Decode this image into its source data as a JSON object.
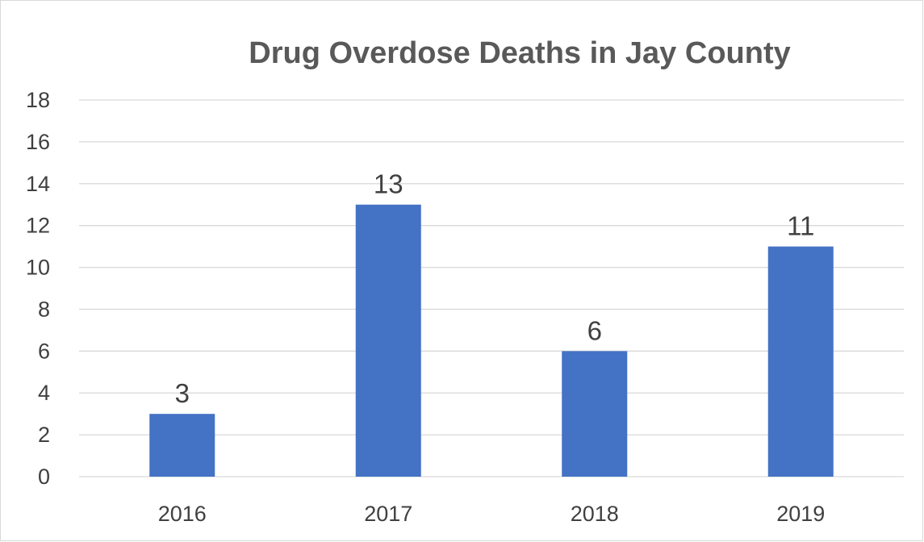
{
  "chart_data": {
    "type": "bar",
    "title": "Drug Overdose Deaths in Jay County",
    "xlabel": "",
    "ylabel": "",
    "categories": [
      "2016",
      "2017",
      "2018",
      "2019"
    ],
    "values": [
      3,
      13,
      6,
      11
    ],
    "data_labels": [
      "3",
      "13",
      "6",
      "11"
    ],
    "ylim": [
      0,
      18
    ],
    "y_ticks": [
      0,
      2,
      4,
      6,
      8,
      10,
      12,
      14,
      16,
      18
    ],
    "y_tick_labels": [
      "0",
      "2",
      "4",
      "6",
      "8",
      "10",
      "12",
      "14",
      "16",
      "18"
    ],
    "grid": true,
    "legend": "none",
    "colors": {
      "bar": "#4472C4",
      "grid": "#D9D9D9",
      "title": "#595959",
      "text": "#404040",
      "border": "#D9D9D9"
    }
  }
}
